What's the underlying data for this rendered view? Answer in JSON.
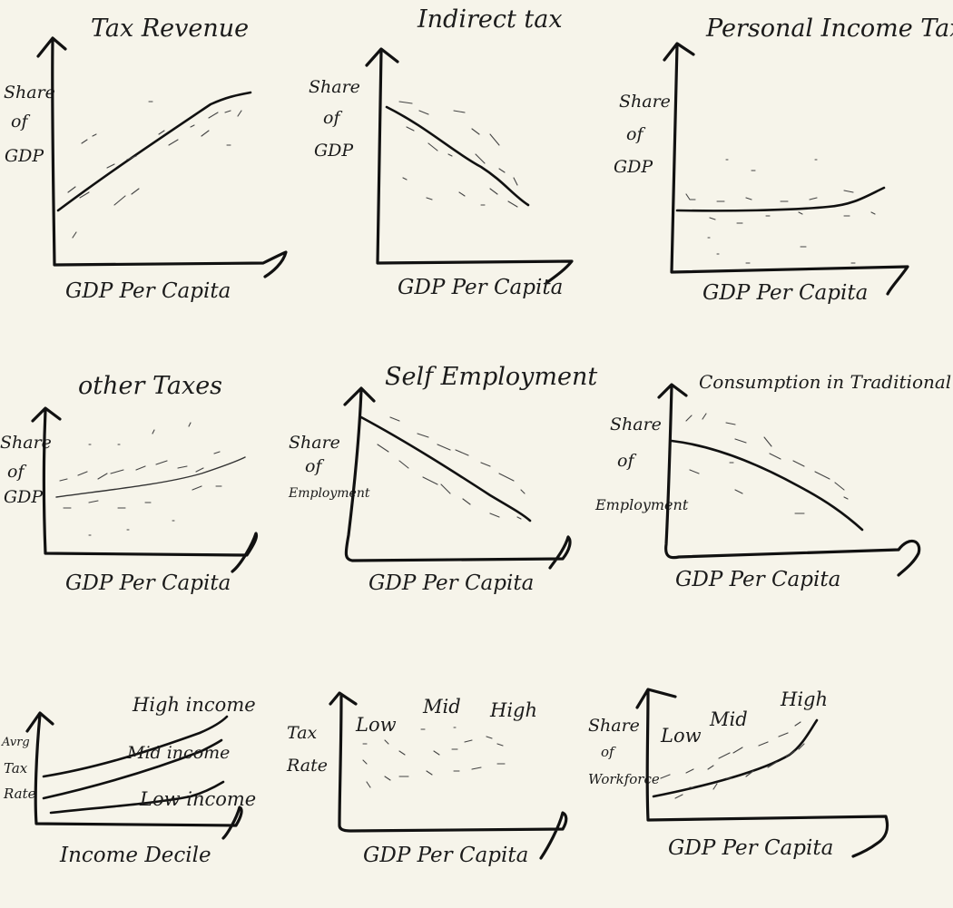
{
  "page": {
    "background": "#f6f4ea",
    "ink": "#111111"
  },
  "panels": [
    {
      "title": "Tax Revenue",
      "ylabel": [
        "Share",
        "of",
        "GDP"
      ],
      "xlabel": "GDP Per Capita",
      "trend": "increasing"
    },
    {
      "title": "Indirect tax",
      "ylabel": [
        "Share",
        "of",
        "GDP"
      ],
      "xlabel": "GDP Per Capita",
      "trend": "decreasing"
    },
    {
      "title": "Personal Income Tax",
      "ylabel": [
        "Share",
        "of",
        "GDP"
      ],
      "xlabel": "GDP Per Capita",
      "trend": "flat then rising"
    },
    {
      "title": "other Taxes",
      "ylabel": [
        "Share",
        "of",
        "GDP"
      ],
      "xlabel": "GDP Per Capita",
      "trend": "slightly increasing"
    },
    {
      "title": "Self Employment",
      "ylabel": [
        "Share",
        "of",
        "Employment"
      ],
      "xlabel": "GDP Per Capita",
      "trend": "decreasing"
    },
    {
      "title": "Consumption in Traditional Store",
      "ylabel": [
        "Share",
        "of",
        "Employment"
      ],
      "xlabel": "GDP Per Capita",
      "trend": "decreasing"
    },
    {
      "title": "",
      "ylabel": [
        "Avrg",
        "Tax",
        "Rate"
      ],
      "xlabel": "Income Decile",
      "series": [
        "High income",
        "Mid income",
        "Low income"
      ],
      "trend": "three increasing lines"
    },
    {
      "title": "",
      "ylabel": [
        "Tax",
        "Rate"
      ],
      "xlabel": "GDP Per Capita",
      "groups": [
        "Low",
        "Mid",
        "High"
      ],
      "trend": "scatter only"
    },
    {
      "title": "",
      "ylabel": [
        "Share",
        "of",
        "Workforce"
      ],
      "xlabel": "GDP Per Capita",
      "groups": [
        "Low",
        "Mid",
        "High"
      ],
      "trend": "increasing"
    }
  ]
}
